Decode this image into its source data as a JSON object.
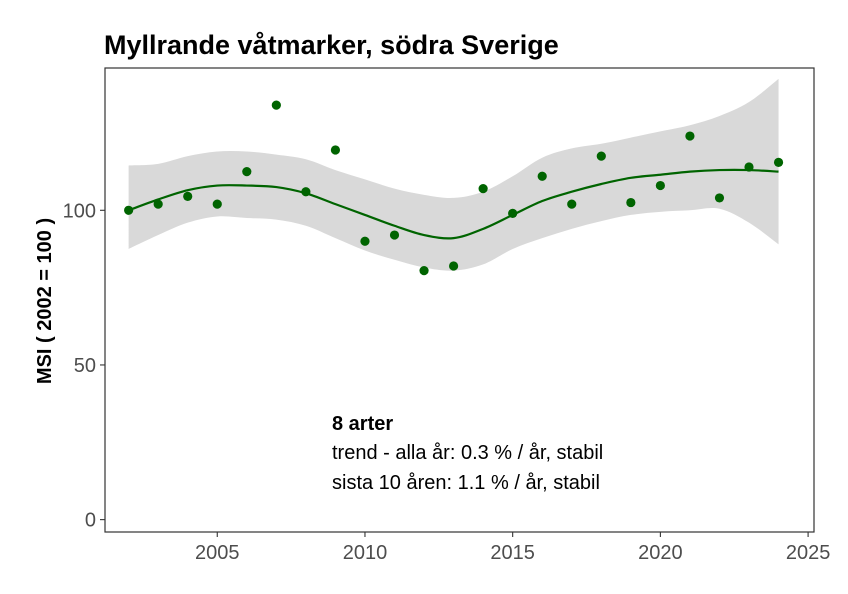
{
  "chart_data": {
    "type": "scatter",
    "title": "Myllrande våtmarker, södra Sverige",
    "xlabel": "",
    "ylabel": "MSI ( 2002 = 100 )",
    "xlim": [
      2001.2,
      2025.2
    ],
    "ylim": [
      -4,
      146
    ],
    "x_ticks": [
      2005,
      2010,
      2015,
      2020,
      2025
    ],
    "y_ticks": [
      0,
      50,
      100
    ],
    "grid": false,
    "colors": {
      "points": "#006400",
      "trend": "#006400",
      "band": "#d9d9d9",
      "frame": "#333333"
    },
    "points": [
      {
        "x": 2002,
        "y": 100
      },
      {
        "x": 2003,
        "y": 102
      },
      {
        "x": 2004,
        "y": 104.5
      },
      {
        "x": 2005,
        "y": 102
      },
      {
        "x": 2006,
        "y": 112.5
      },
      {
        "x": 2007,
        "y": 134
      },
      {
        "x": 2008,
        "y": 106
      },
      {
        "x": 2009,
        "y": 119.5
      },
      {
        "x": 2010,
        "y": 90
      },
      {
        "x": 2011,
        "y": 92
      },
      {
        "x": 2012,
        "y": 80.5
      },
      {
        "x": 2013,
        "y": 82
      },
      {
        "x": 2014,
        "y": 107
      },
      {
        "x": 2015,
        "y": 99
      },
      {
        "x": 2016,
        "y": 111
      },
      {
        "x": 2017,
        "y": 102
      },
      {
        "x": 2018,
        "y": 117.5
      },
      {
        "x": 2019,
        "y": 102.5
      },
      {
        "x": 2020,
        "y": 108
      },
      {
        "x": 2021,
        "y": 124
      },
      {
        "x": 2022,
        "y": 104
      },
      {
        "x": 2023,
        "y": 114
      },
      {
        "x": 2024,
        "y": 115.5
      }
    ],
    "trend": [
      {
        "x": 2002,
        "y": 100,
        "lo": 87.5,
        "hi": 114.5
      },
      {
        "x": 2003,
        "y": 103.5,
        "lo": 92,
        "hi": 115
      },
      {
        "x": 2004,
        "y": 106.5,
        "lo": 96,
        "hi": 117.5
      },
      {
        "x": 2005,
        "y": 108,
        "lo": 98,
        "hi": 119
      },
      {
        "x": 2006,
        "y": 108,
        "lo": 97.5,
        "hi": 119
      },
      {
        "x": 2007,
        "y": 107.5,
        "lo": 97,
        "hi": 118
      },
      {
        "x": 2008,
        "y": 105.5,
        "lo": 95,
        "hi": 116.5
      },
      {
        "x": 2009,
        "y": 102,
        "lo": 91,
        "hi": 113
      },
      {
        "x": 2010,
        "y": 98.5,
        "lo": 87,
        "hi": 110
      },
      {
        "x": 2011,
        "y": 95,
        "lo": 84,
        "hi": 107
      },
      {
        "x": 2012,
        "y": 92,
        "lo": 81.5,
        "hi": 105
      },
      {
        "x": 2013,
        "y": 91,
        "lo": 80.5,
        "hi": 104
      },
      {
        "x": 2014,
        "y": 94,
        "lo": 82.5,
        "hi": 106
      },
      {
        "x": 2015,
        "y": 98.5,
        "lo": 87.5,
        "hi": 111
      },
      {
        "x": 2016,
        "y": 103,
        "lo": 91,
        "hi": 117
      },
      {
        "x": 2017,
        "y": 106,
        "lo": 94,
        "hi": 120
      },
      {
        "x": 2018,
        "y": 108.5,
        "lo": 96.5,
        "hi": 121.5
      },
      {
        "x": 2019,
        "y": 110.5,
        "lo": 98.5,
        "hi": 123.5
      },
      {
        "x": 2020,
        "y": 111.5,
        "lo": 99.5,
        "hi": 125.5
      },
      {
        "x": 2021,
        "y": 112.5,
        "lo": 100,
        "hi": 127.5
      },
      {
        "x": 2022,
        "y": 113,
        "lo": 100.5,
        "hi": 130.5
      },
      {
        "x": 2023,
        "y": 113,
        "lo": 96,
        "hi": 135
      },
      {
        "x": 2024,
        "y": 112.5,
        "lo": 89,
        "hi": 142.5
      }
    ],
    "annotation": {
      "heading": "8 arter",
      "line1": "trend - alla år: 0.3 % / år, stabil",
      "line2": "sista 10 åren: 1.1 % / år, stabil"
    }
  }
}
